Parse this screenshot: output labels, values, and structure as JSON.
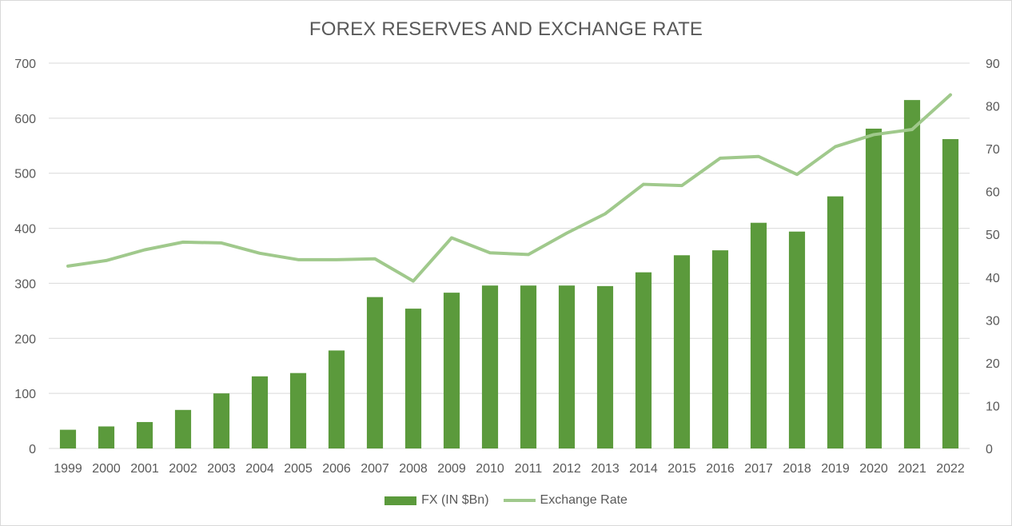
{
  "chart_data": {
    "type": "bar",
    "title": "FOREX RESERVES AND EXCHANGE RATE",
    "categories": [
      "1999",
      "2000",
      "2001",
      "2002",
      "2003",
      "2004",
      "2005",
      "2006",
      "2007",
      "2008",
      "2009",
      "2010",
      "2011",
      "2012",
      "2013",
      "2014",
      "2015",
      "2016",
      "2017",
      "2018",
      "2019",
      "2020",
      "2021",
      "2022"
    ],
    "series": [
      {
        "name": "FX (IN $Bn)",
        "type": "bar",
        "axis": "left",
        "color": "#5b9a3c",
        "values": [
          34,
          40,
          48,
          70,
          100,
          131,
          137,
          178,
          275,
          254,
          283,
          296,
          296,
          296,
          295,
          320,
          351,
          360,
          410,
          394,
          458,
          581,
          633,
          562
        ]
      },
      {
        "name": "Exchange Rate",
        "type": "line",
        "axis": "right",
        "color": "#a0c98c",
        "values": [
          42.6,
          43.9,
          46.4,
          48.2,
          48.0,
          45.6,
          44.1,
          44.1,
          44.3,
          39.1,
          49.2,
          45.7,
          45.3,
          50.3,
          54.8,
          61.7,
          61.4,
          67.8,
          68.2,
          64.0,
          70.5,
          73.3,
          74.5,
          82.6
        ]
      }
    ],
    "ylim": [
      0,
      700
    ],
    "y2lim": [
      0,
      90
    ],
    "yticks": [
      "0",
      "100",
      "200",
      "300",
      "400",
      "500",
      "600",
      "700"
    ],
    "y2ticks": [
      "0",
      "10",
      "20",
      "30",
      "40",
      "50",
      "60",
      "70",
      "80",
      "90"
    ],
    "grid": true,
    "legend_position": "bottom"
  }
}
